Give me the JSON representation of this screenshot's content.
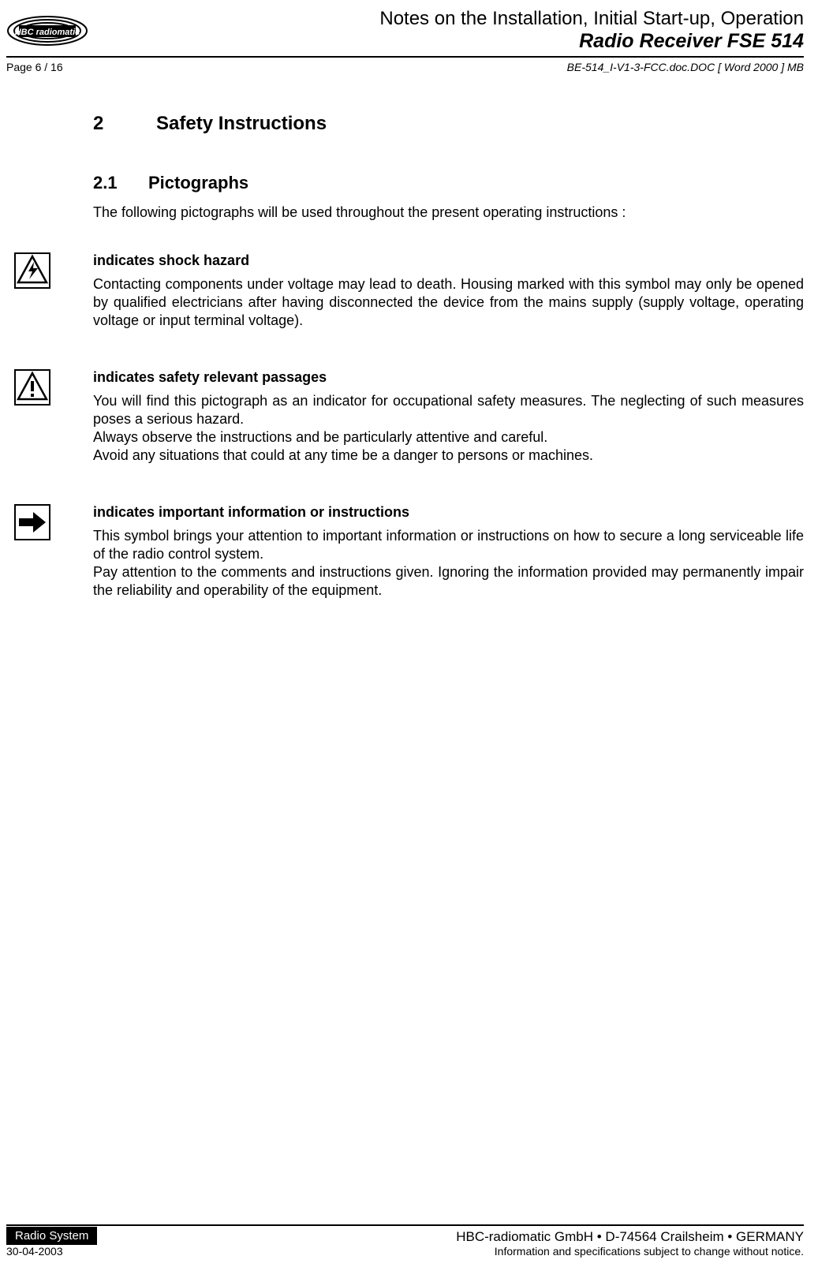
{
  "header": {
    "title_line1": "Notes on the Installation, Initial Start-up, Operation",
    "title_line2": "Radio Receiver FSE 514",
    "page_label": "Page 6 / 16",
    "doc_ref": "BE-514_I-V1-3-FCC.doc.DOC [ Word 2000 ] MB"
  },
  "section": {
    "num": "2",
    "title": "Safety Instructions"
  },
  "subsection": {
    "num": "2.1",
    "title": "Pictographs",
    "intro": "The following pictographs will be used throughout the present operating instructions :"
  },
  "pictographs": {
    "shock": {
      "title": "indicates shock hazard",
      "body": "Contacting components under voltage may lead to death. Housing marked with this symbol may only be opened by qualified electricians after having disconnected the device from the mains supply (supply voltage, operating voltage or input terminal voltage)."
    },
    "safety": {
      "title": "indicates safety relevant passages",
      "body": "You will find this pictograph as an indicator for occupational safety measures. The neglecting of such measures poses a serious hazard.\nAlways observe the instructions and be particularly attentive and careful.\nAvoid any situations that could at any time be a danger to persons or machines."
    },
    "info": {
      "title": "indicates important information or instructions",
      "body": "This symbol brings your attention to important information or instructions on how to secure a long serviceable life of the radio control system.\nPay attention to the comments and instructions given. Ignoring the information provided may permanently impair the reliability and operability of the equipment."
    }
  },
  "footer": {
    "badge": "Radio System",
    "date": "30-04-2003",
    "company": "HBC-radiomatic GmbH • D-74564 Crailsheim • GERMANY",
    "notice": "Information and specifications subject to change without notice."
  }
}
